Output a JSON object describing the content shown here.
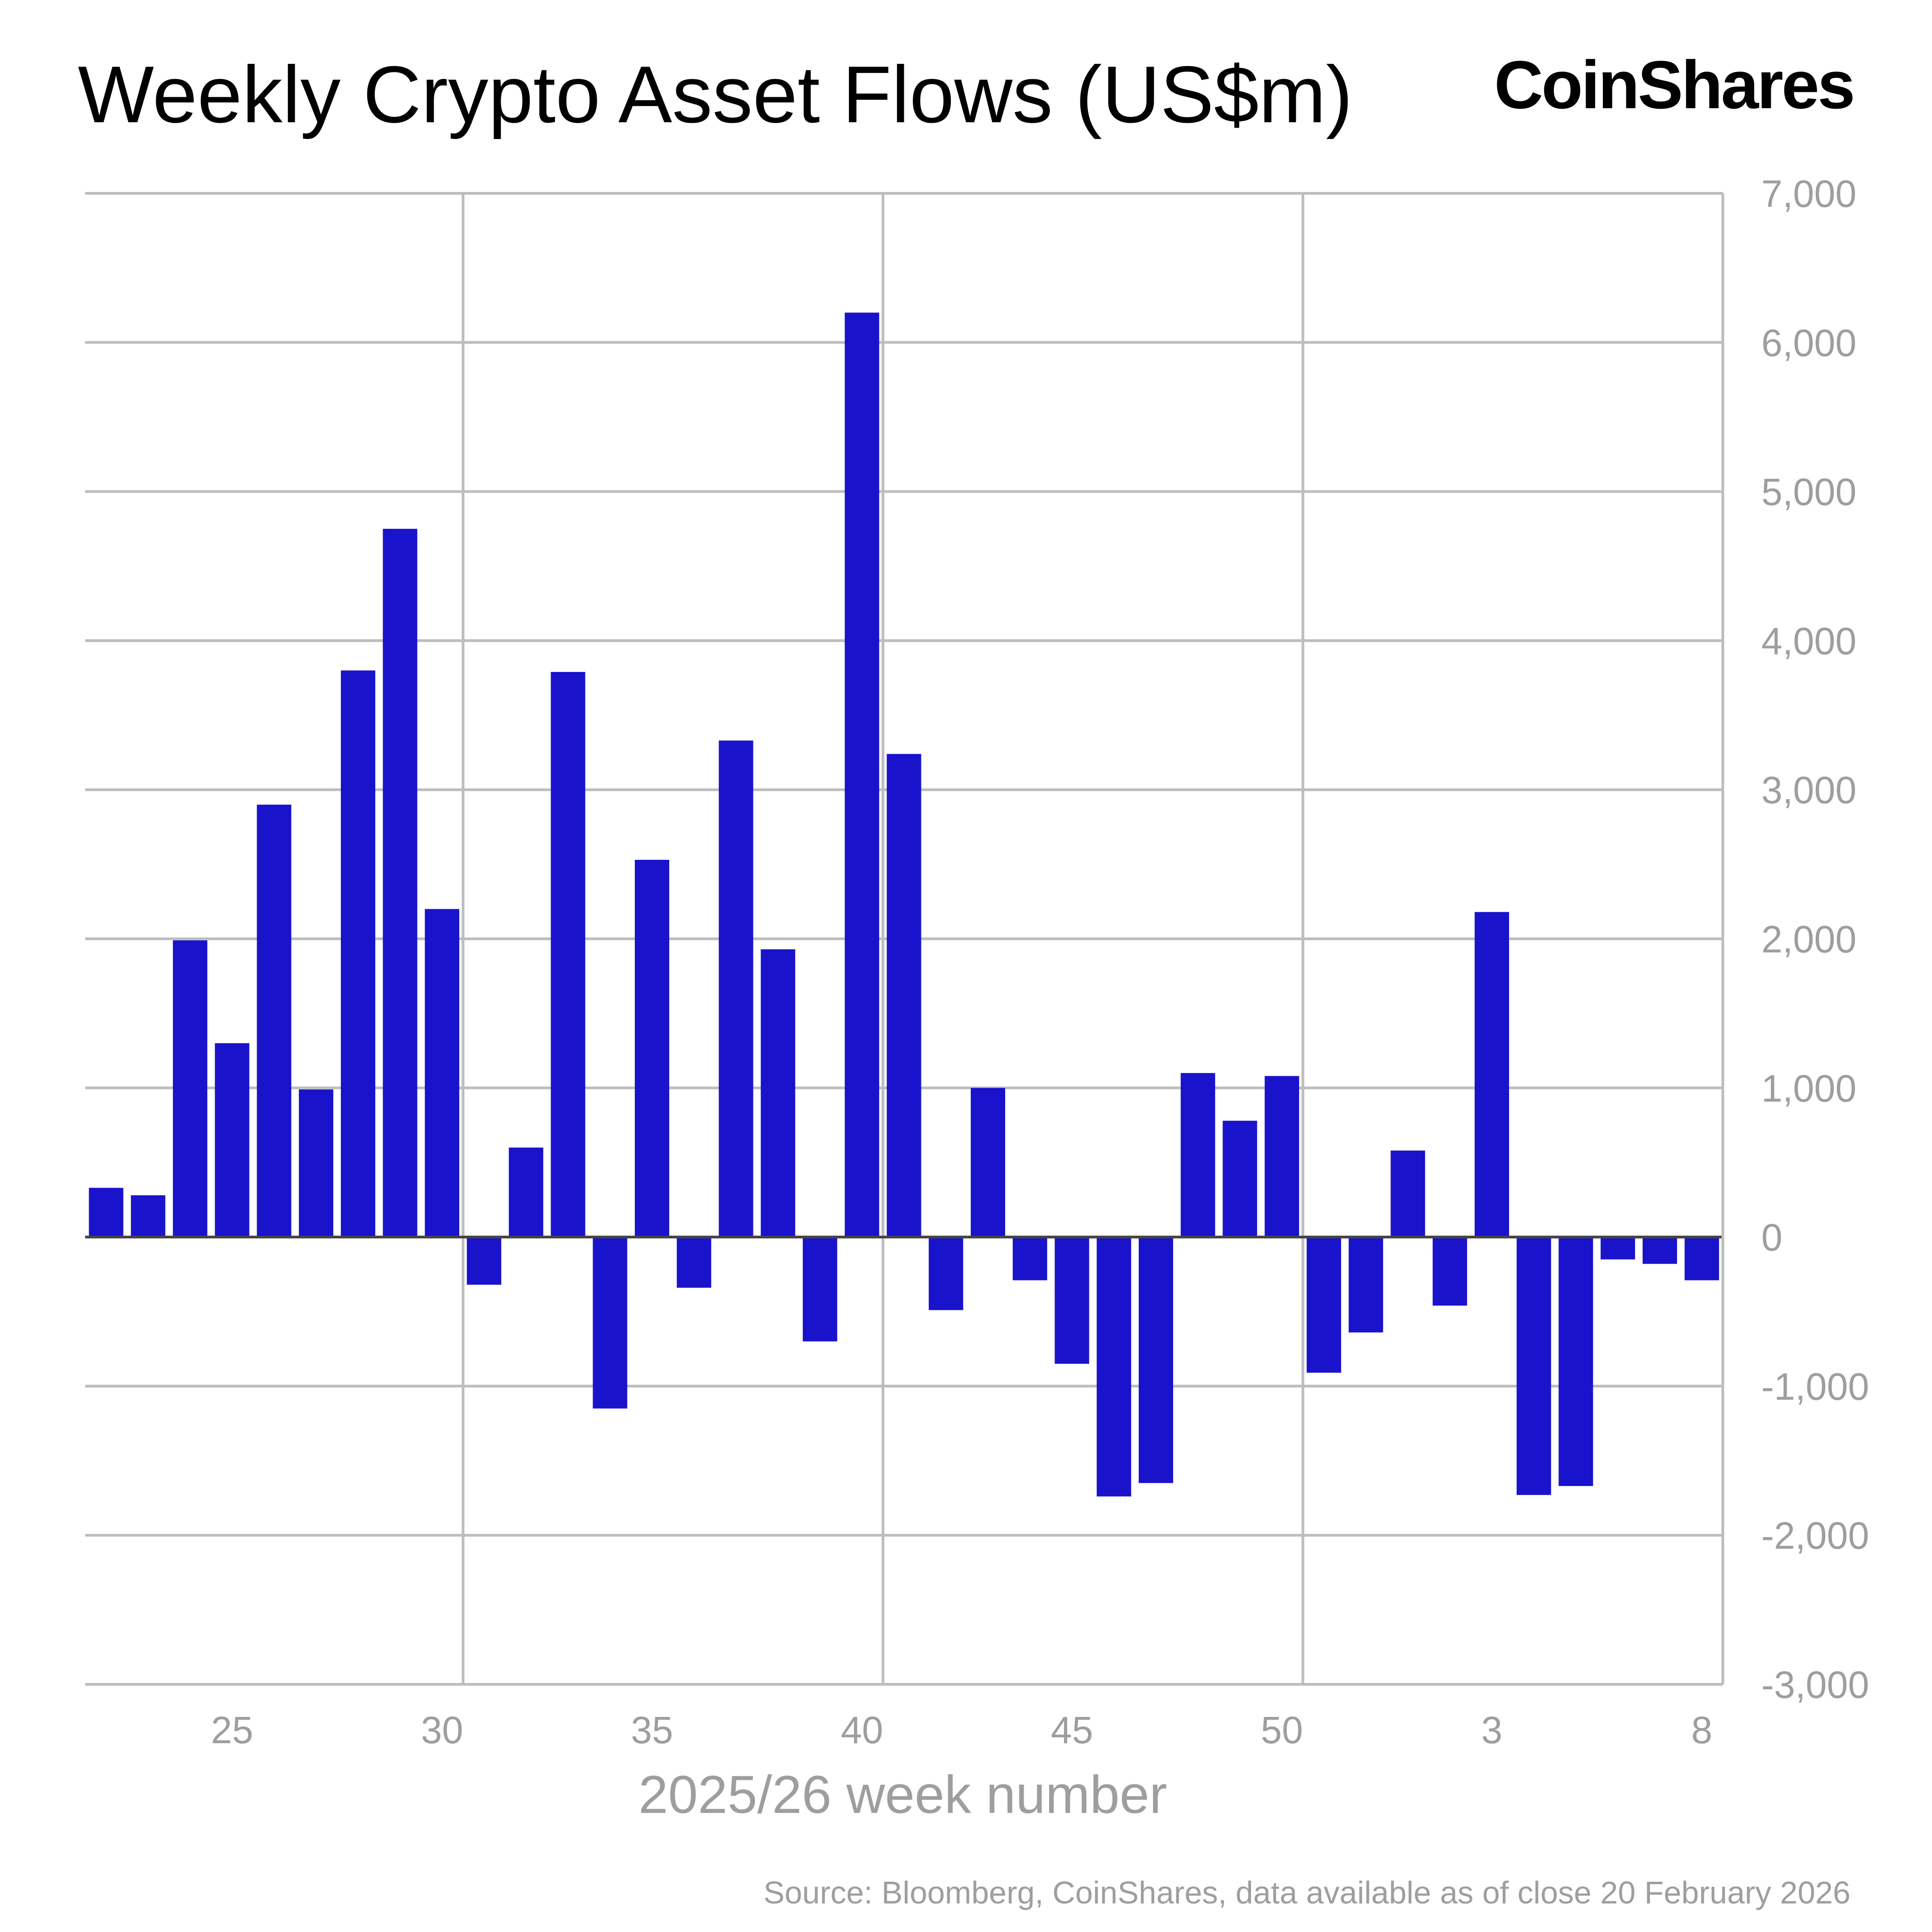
{
  "header": {
    "title": "Weekly Crypto Asset Flows (US$m)",
    "logo_text": "CoinShares"
  },
  "footer": {
    "source": "Source: Bloomberg, CoinShares, data available as of close 20 February 2026"
  },
  "colors": {
    "bar": "#1a13cc",
    "grid": "#bdbdbd",
    "axis": "#9e9e9e",
    "zero_line": "#444444"
  },
  "chart_data": {
    "type": "bar",
    "title": "Weekly Crypto Asset Flows (US$m)",
    "xlabel": "2025/26 week number",
    "ylabel": "",
    "ylim": [
      -3000,
      7000
    ],
    "yticks": [
      7000,
      6000,
      5000,
      4000,
      3000,
      2000,
      1000,
      0,
      -1000,
      -2000,
      -3000
    ],
    "ytick_labels": [
      "7,000",
      "6,000",
      "5,000",
      "4,000",
      "3,000",
      "2,000",
      "1,000",
      "0",
      "-1,000",
      "-2,000",
      "-3,000"
    ],
    "xtick_labels": [
      {
        "label": "25",
        "index": 3
      },
      {
        "label": "30",
        "index": 8
      },
      {
        "label": "35",
        "index": 13
      },
      {
        "label": "40",
        "index": 18
      },
      {
        "label": "45",
        "index": 23
      },
      {
        "label": "50",
        "index": 28
      },
      {
        "label": "3",
        "index": 33
      },
      {
        "label": "8",
        "index": 38
      }
    ],
    "categories": [
      "22",
      "23",
      "24",
      "25",
      "26",
      "27",
      "28",
      "29",
      "30",
      "31",
      "32",
      "33",
      "34",
      "35",
      "36",
      "37",
      "38",
      "39",
      "40",
      "41",
      "42",
      "43",
      "44",
      "45",
      "46",
      "47",
      "48",
      "49",
      "50",
      "51",
      "52",
      "1",
      "2",
      "3",
      "4",
      "5",
      "6",
      "7",
      "8"
    ],
    "values": [
      330,
      280,
      1990,
      1300,
      2900,
      990,
      3800,
      4750,
      2200,
      -320,
      600,
      3790,
      -1150,
      2530,
      -340,
      3330,
      1930,
      -700,
      6200,
      3240,
      -490,
      1000,
      -290,
      -850,
      -1740,
      -1650,
      1100,
      780,
      1080,
      -910,
      -640,
      580,
      -460,
      2180,
      -1730,
      -1670,
      -150,
      -180,
      -290
    ],
    "grid": true,
    "legend": "none"
  }
}
